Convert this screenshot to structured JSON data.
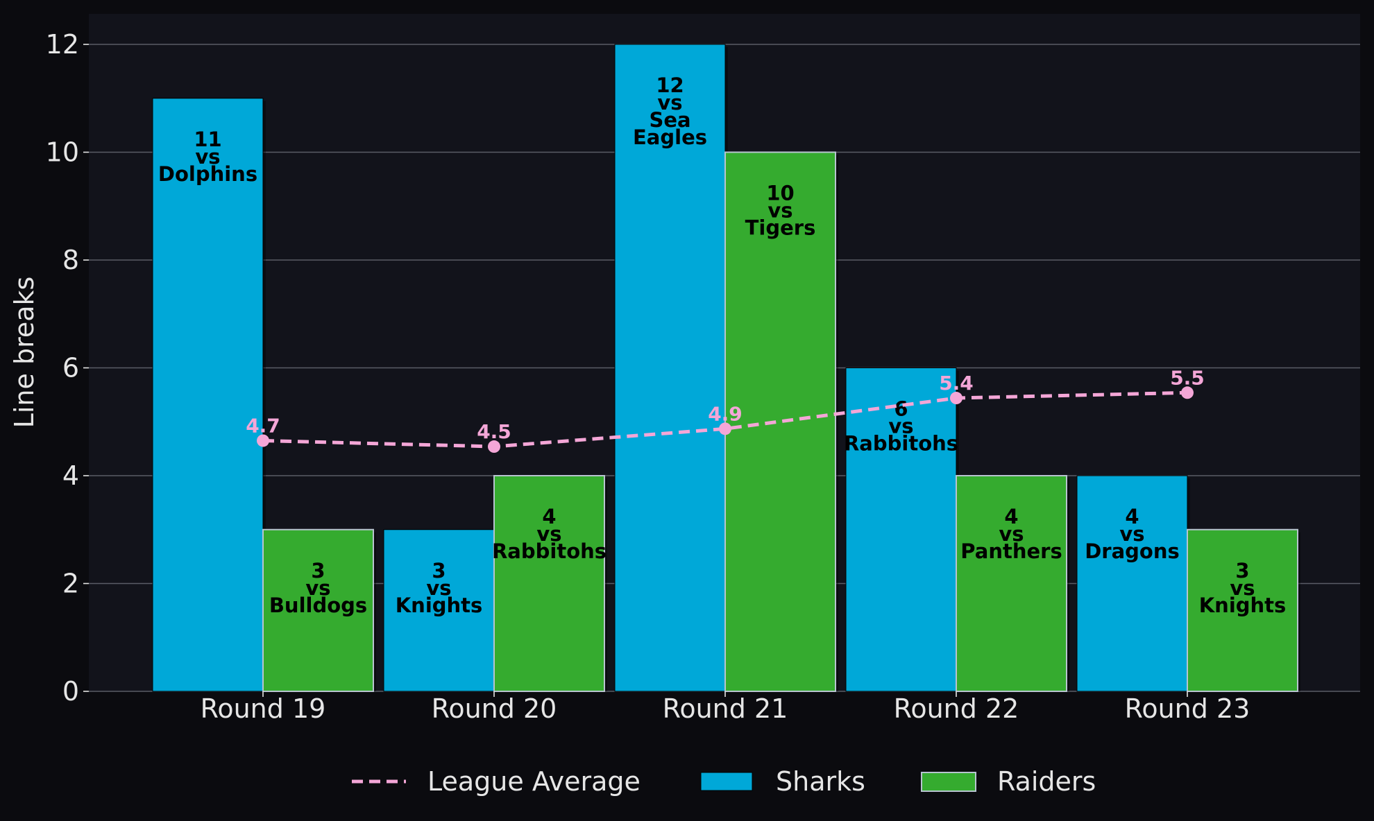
{
  "chart_data": {
    "type": "bar",
    "title": "",
    "xlabel": "",
    "ylabel": "Line breaks",
    "ylim": [
      0,
      12.6
    ],
    "yticks": [
      0,
      2,
      4,
      6,
      8,
      10,
      12
    ],
    "grid": true,
    "legend_position": "bottom",
    "categories": [
      "Round 19",
      "Round 20",
      "Round 21",
      "Round 22",
      "Round 23"
    ],
    "series": [
      {
        "name": "Sharks",
        "color": "#00a8d8",
        "values": [
          11,
          3,
          12,
          6,
          4
        ],
        "labels": [
          [
            "11",
            "vs",
            "Dolphins"
          ],
          [
            "3",
            "vs",
            "Knights"
          ],
          [
            "12",
            "vs",
            "Sea",
            "Eagles"
          ],
          [
            "6",
            "vs",
            "Rabbitohs"
          ],
          [
            "4",
            "vs",
            "Dragons"
          ]
        ]
      },
      {
        "name": "Raiders",
        "color": "#35ab2f",
        "values": [
          3,
          4,
          10,
          4,
          3
        ],
        "labels": [
          [
            "3",
            "vs",
            "Bulldogs"
          ],
          [
            "4",
            "vs",
            "Rabbitohs"
          ],
          [
            "10",
            "vs",
            "Tigers"
          ],
          [
            "4",
            "vs",
            "Panthers"
          ],
          [
            "3",
            "vs",
            "Knights"
          ]
        ]
      }
    ],
    "average_line": {
      "name": "League Average",
      "color": "#f4a6d7",
      "values": [
        4.65,
        4.54,
        4.87,
        5.44,
        5.54
      ],
      "labels": [
        "4.7",
        "4.5",
        "4.9",
        "5.4",
        "5.5"
      ]
    }
  }
}
